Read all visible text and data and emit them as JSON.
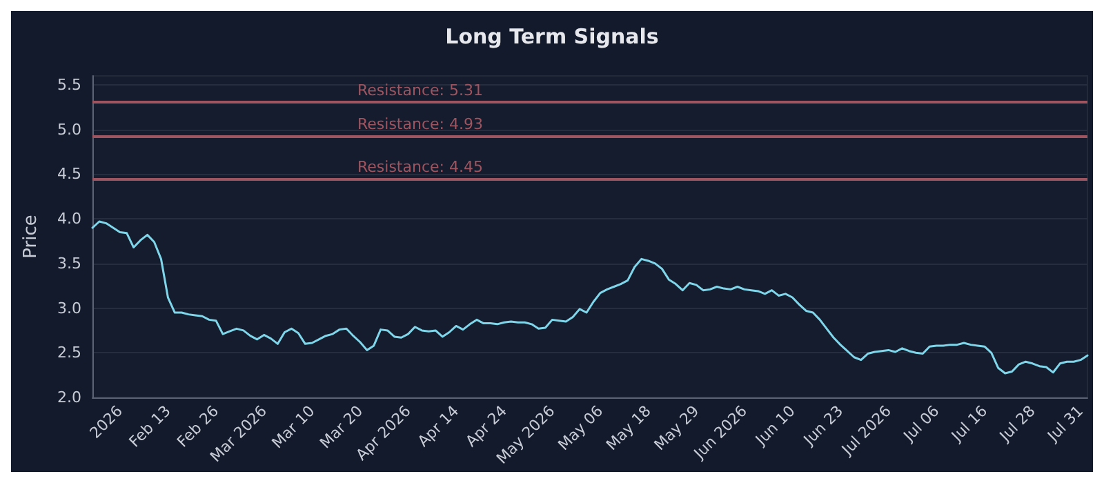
{
  "chart_data": {
    "type": "line",
    "title": "Long Term Signals",
    "ylabel": "Price",
    "categories": [
      null,
      null,
      null,
      null,
      "2026",
      null,
      null,
      null,
      null,
      null,
      null,
      "Feb 13",
      null,
      null,
      null,
      null,
      null,
      null,
      "Feb 26",
      null,
      null,
      null,
      null,
      null,
      null,
      "Mar 2026",
      null,
      null,
      null,
      null,
      null,
      null,
      "Mar 10",
      null,
      null,
      null,
      null,
      null,
      null,
      "Mar 20",
      null,
      null,
      null,
      null,
      null,
      null,
      "Apr 2026",
      null,
      null,
      null,
      null,
      null,
      null,
      "Apr 14",
      null,
      null,
      null,
      null,
      null,
      null,
      "Apr 24",
      null,
      null,
      null,
      null,
      null,
      null,
      "May 2026",
      null,
      null,
      null,
      null,
      null,
      null,
      "May 06",
      null,
      null,
      null,
      null,
      null,
      null,
      "May 18",
      null,
      null,
      null,
      null,
      null,
      null,
      "May 29",
      null,
      null,
      null,
      null,
      null,
      null,
      "Jun 2026",
      null,
      null,
      null,
      null,
      null,
      null,
      "Jun 10",
      null,
      null,
      null,
      null,
      null,
      null,
      "Jun 23",
      null,
      null,
      null,
      null,
      null,
      null,
      "Jul 2026",
      null,
      null,
      null,
      null,
      null,
      null,
      "Jul 06",
      null,
      null,
      null,
      null,
      null,
      null,
      "Jul 16",
      null,
      null,
      null,
      null,
      null,
      null,
      "Jul 28",
      null,
      null,
      null,
      null,
      null,
      null,
      "Jul 31",
      null
    ],
    "series": [
      {
        "color": "#7fd6ea",
        "values": [
          3.9,
          3.97,
          3.95,
          3.9,
          3.85,
          3.84,
          3.68,
          3.76,
          3.82,
          3.74,
          3.55,
          3.12,
          2.95,
          2.95,
          2.93,
          2.92,
          2.91,
          2.87,
          2.86,
          2.71,
          2.74,
          2.77,
          2.75,
          2.69,
          2.65,
          2.7,
          2.66,
          2.6,
          2.73,
          2.77,
          2.72,
          2.6,
          2.61,
          2.65,
          2.69,
          2.71,
          2.76,
          2.77,
          2.69,
          2.62,
          2.53,
          2.58,
          2.76,
          2.75,
          2.68,
          2.67,
          2.71,
          2.79,
          2.75,
          2.74,
          2.75,
          2.68,
          2.73,
          2.8,
          2.76,
          2.82,
          2.87,
          2.83,
          2.83,
          2.82,
          2.84,
          2.85,
          2.84,
          2.84,
          2.82,
          2.77,
          2.78,
          2.87,
          2.86,
          2.85,
          2.9,
          2.99,
          2.95,
          3.07,
          3.17,
          3.21,
          3.24,
          3.27,
          3.31,
          3.46,
          3.55,
          3.53,
          3.5,
          3.44,
          3.32,
          3.27,
          3.2,
          3.28,
          3.26,
          3.2,
          3.21,
          3.24,
          3.22,
          3.21,
          3.24,
          3.21,
          3.2,
          3.19,
          3.16,
          3.2,
          3.14,
          3.16,
          3.12,
          3.04,
          2.97,
          2.95,
          2.87,
          2.77,
          2.67,
          2.59,
          2.52,
          2.45,
          2.42,
          2.49,
          2.51,
          2.52,
          2.53,
          2.51,
          2.55,
          2.52,
          2.5,
          2.49,
          2.57,
          2.58,
          2.58,
          2.59,
          2.59,
          2.61,
          2.59,
          2.58,
          2.57,
          2.5,
          2.33,
          2.27,
          2.29,
          2.37,
          2.4,
          2.38,
          2.35,
          2.34,
          2.28,
          2.38,
          2.4,
          2.4,
          2.42,
          2.47
        ]
      }
    ],
    "ylim": [
      2.0,
      5.6
    ],
    "yticks": [
      {
        "value": 2.0,
        "label": "2.0"
      },
      {
        "value": 2.5,
        "label": "2.5"
      },
      {
        "value": 3.0,
        "label": "3.0"
      },
      {
        "value": 3.5,
        "label": "3.5"
      },
      {
        "value": 4.0,
        "label": "4.0"
      },
      {
        "value": 4.5,
        "label": "4.5"
      },
      {
        "value": 5.0,
        "label": "5.0"
      },
      {
        "value": 5.5,
        "label": "5.5"
      }
    ],
    "ref_lines": [
      {
        "axis": "y",
        "value": 5.31,
        "label": "Resistance: 5.31",
        "color": "#9e5560"
      },
      {
        "axis": "y",
        "value": 4.93,
        "label": "Resistance: 4.93",
        "color": "#9e5560"
      },
      {
        "axis": "y",
        "value": 4.45,
        "label": "Resistance: 4.45",
        "color": "#9e5560"
      }
    ],
    "grid": "y",
    "marker": "none",
    "line_style": "solid"
  }
}
